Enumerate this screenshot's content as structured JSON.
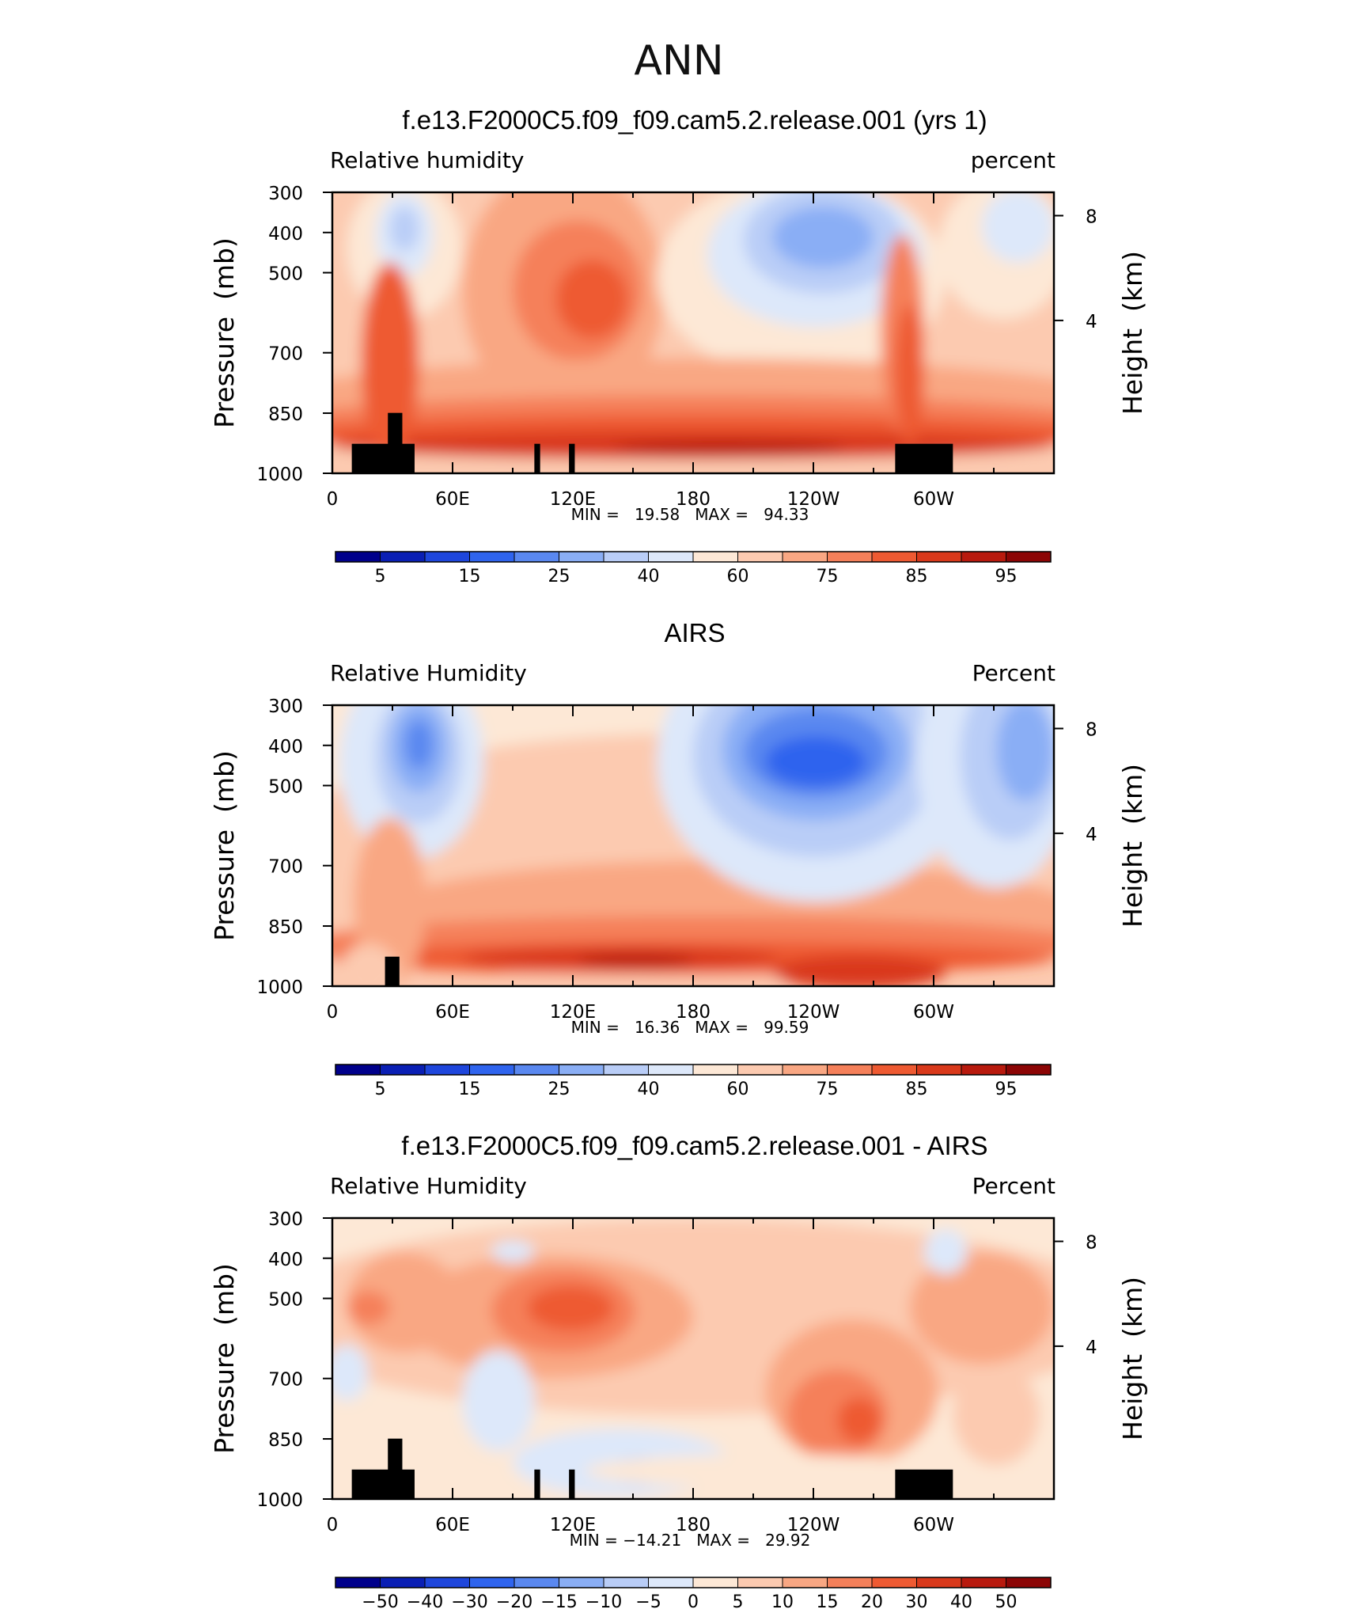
{
  "figure_title": "ANN",
  "chart_data": [
    {
      "type": "contour",
      "title": "f.e13.F2000C5.f09_f09.cam5.2.release.001 (yrs 1)",
      "left_label": "Relative  humidity",
      "right_label": "percent",
      "ylabel_left": "Pressure  (mb)",
      "ylabel_right": "Height  (km)",
      "x_ticks": [
        "0",
        "60E",
        "120E",
        "180",
        "120W",
        "60W"
      ],
      "y_ticks": [
        "300",
        "400",
        "500",
        "700",
        "850",
        "1000"
      ],
      "y_right_ticks": [
        "8",
        "4"
      ],
      "stats": "MIN =   19.58   MAX =   94.33",
      "colorbar_labels": [
        "5",
        "15",
        "25",
        "40",
        "60",
        "75",
        "85",
        "95"
      ],
      "min": 19.58,
      "max": 94.33
    },
    {
      "type": "contour",
      "title": "AIRS",
      "left_label": "Relative Humidity",
      "right_label": "Percent",
      "ylabel_left": "Pressure  (mb)",
      "ylabel_right": "Height  (km)",
      "x_ticks": [
        "0",
        "60E",
        "120E",
        "180",
        "120W",
        "60W"
      ],
      "y_ticks": [
        "300",
        "400",
        "500",
        "700",
        "850",
        "1000"
      ],
      "y_right_ticks": [
        "8",
        "4"
      ],
      "stats": "MIN =   16.36   MAX =   99.59",
      "colorbar_labels": [
        "5",
        "15",
        "25",
        "40",
        "60",
        "75",
        "85",
        "95"
      ],
      "min": 16.36,
      "max": 99.59
    },
    {
      "type": "contour",
      "title": "f.e13.F2000C5.f09_f09.cam5.2.release.001 - AIRS",
      "left_label": "Relative Humidity",
      "right_label": "Percent",
      "ylabel_left": "Pressure  (mb)",
      "ylabel_right": "Height  (km)",
      "x_ticks": [
        "0",
        "60E",
        "120E",
        "180",
        "120W",
        "60W"
      ],
      "y_ticks": [
        "300",
        "400",
        "500",
        "700",
        "850",
        "1000"
      ],
      "y_right_ticks": [
        "8",
        "4"
      ],
      "stats": "MIN = −14.21   MAX =   29.92",
      "colorbar_labels": [
        "−50",
        "−40",
        "−30",
        "−20",
        "−15",
        "−10",
        "−5",
        "0",
        "5",
        "10",
        "15",
        "20",
        "30",
        "40",
        "50"
      ],
      "min": -14.21,
      "max": 29.92
    }
  ],
  "colorbar_colors": [
    "#00008b",
    "#0a1fb4",
    "#1e46dc",
    "#2f64ee",
    "#5a88f0",
    "#8aaef5",
    "#b9cdf7",
    "#dde8fa",
    "#fde8d6",
    "#fccab0",
    "#f9a783",
    "#f5805a",
    "#ee5a32",
    "#d9391b",
    "#b81a0e",
    "#8c0505"
  ]
}
